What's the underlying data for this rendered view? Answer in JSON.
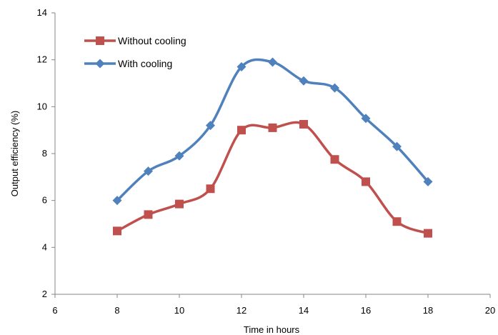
{
  "chart_data": {
    "type": "line",
    "title": "",
    "xlabel": "Time in hours",
    "ylabel": "Output efficiency (%)",
    "xlim": [
      6,
      20
    ],
    "ylim": [
      2,
      14
    ],
    "xticks": [
      "6",
      "8",
      "10",
      "12",
      "14",
      "16",
      "18",
      "20"
    ],
    "yticks": [
      "2",
      "4",
      "6",
      "8",
      "10",
      "12",
      "14"
    ],
    "grid": false,
    "legend_position": "top-left",
    "x": [
      8,
      9,
      10,
      11,
      12,
      13,
      14,
      15,
      16,
      17,
      18
    ],
    "series": [
      {
        "name": "Without cooling",
        "marker": "square",
        "color": "#c0504d",
        "values": [
          4.7,
          5.4,
          5.85,
          6.5,
          9.0,
          9.1,
          9.25,
          7.75,
          6.8,
          5.1,
          4.6
        ]
      },
      {
        "name": "With cooling",
        "marker": "diamond",
        "color": "#4f81bd",
        "values": [
          6.0,
          7.25,
          7.9,
          9.2,
          11.7,
          11.9,
          11.1,
          10.8,
          9.5,
          8.3,
          6.8
        ]
      }
    ]
  }
}
